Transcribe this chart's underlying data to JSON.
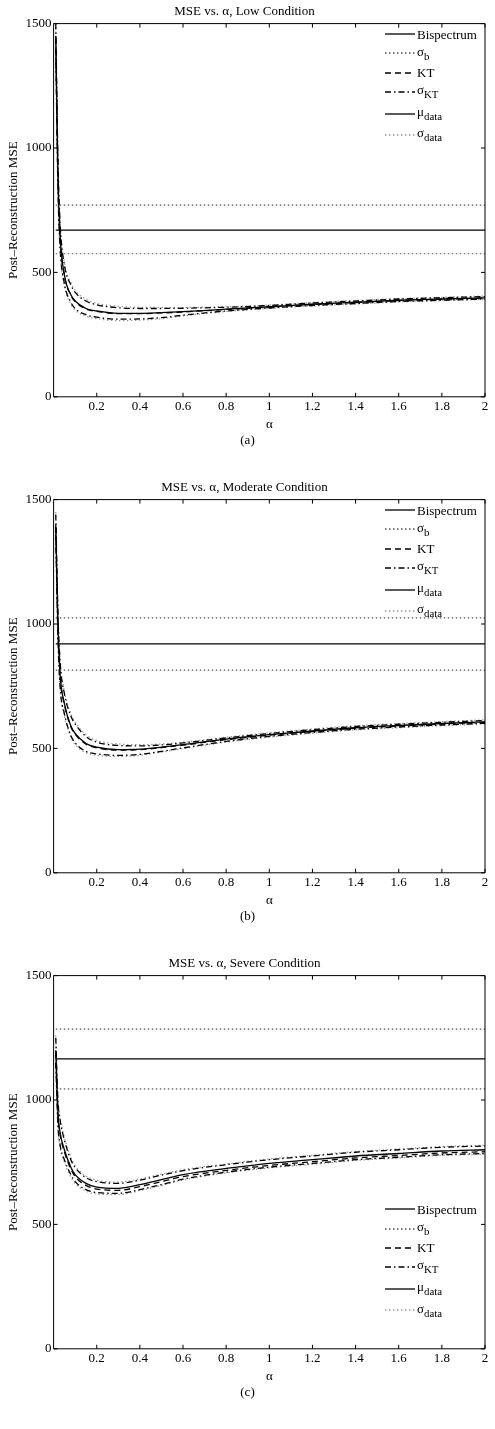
{
  "chart_data": [
    {
      "type": "line",
      "title": "MSE vs. α, Low Condition",
      "xlabel": "α",
      "ylabel": "Post–Reconstruction MSE",
      "annotations": [
        "(a)"
      ],
      "xlim": [
        0,
        2
      ],
      "xticks": [
        0.2,
        0.4,
        0.6,
        0.8,
        1,
        1.2,
        1.4,
        1.6,
        1.8,
        2
      ],
      "ylim": [
        0,
        1500
      ],
      "yticks": [
        0,
        500,
        1000,
        1500
      ],
      "grid": false,
      "legend": "top right",
      "marker": "none",
      "x": [
        0.01,
        0.02,
        0.03,
        0.05,
        0.08,
        0.1,
        0.15,
        0.2,
        0.3,
        0.4,
        0.5,
        0.6,
        0.8,
        1,
        1.2,
        1.4,
        1.6,
        1.8,
        2
      ],
      "series": [
        {
          "name": "Bispectrum",
          "color": "#000000",
          "line_style": "solid",
          "values": [
            670,
            670,
            670,
            670,
            670,
            670,
            670,
            670,
            670,
            670,
            670,
            670,
            670,
            670,
            670,
            670,
            670,
            670,
            670
          ]
        },
        {
          "name": "σ$_{b}$",
          "color": "#555555",
          "line_style": "dotted",
          "values": [
            770,
            770,
            770,
            770,
            770,
            770,
            770,
            770,
            770,
            770,
            770,
            770,
            770,
            770,
            770,
            770,
            770,
            770,
            770
          ]
        },
        {
          "color": "#555555",
          "line_style": "dotted",
          "values": [
            575,
            575,
            575,
            575,
            575,
            575,
            575,
            575,
            575,
            575,
            575,
            575,
            575,
            575,
            575,
            575,
            575,
            575,
            575
          ]
        },
        {
          "name": "KT",
          "color": "#000000",
          "line_style": "dashed",
          "values": [
            1440,
            890,
            645,
            488,
            408,
            383,
            353,
            343,
            334,
            334,
            337,
            341,
            351,
            361,
            371,
            379,
            387,
            392,
            397
          ]
        },
        {
          "name": "σ$_{KT}$",
          "color": "#000000",
          "line_style": "dashdot",
          "values": [
            1500,
            960,
            700,
            530,
            450,
            420,
            385,
            370,
            358,
            355,
            355,
            356,
            360,
            367,
            377,
            385,
            393,
            398,
            403
          ]
        },
        {
          "color": "#000000",
          "line_style": "dashdot",
          "values": [
            1400,
            840,
            600,
            455,
            380,
            355,
            330,
            320,
            312,
            313,
            318,
            328,
            345,
            357,
            367,
            375,
            383,
            388,
            393
          ]
        },
        {
          "name": "μ$_{data}$",
          "color": "#000000",
          "line_style": "solid",
          "values": [
            1450,
            900,
            650,
            490,
            410,
            385,
            355,
            345,
            335,
            335,
            338,
            342,
            352,
            362,
            372,
            380,
            388,
            393,
            398
          ]
        },
        {
          "name": "σ$_{data}$",
          "color": "#999999",
          "line_style": "dotted",
          "values": [
            1500,
            970,
            710,
            540,
            460,
            428,
            392,
            376,
            364,
            360,
            359,
            359,
            362,
            369,
            379,
            387,
            395,
            400,
            405
          ]
        },
        {
          "color": "#999999",
          "line_style": "dotted",
          "values": [
            1390,
            830,
            590,
            445,
            372,
            348,
            324,
            314,
            306,
            308,
            314,
            325,
            343,
            355,
            365,
            373,
            381,
            386,
            391
          ]
        }
      ]
    },
    {
      "type": "line",
      "title": "MSE vs. α, Moderate Condition",
      "xlabel": "α",
      "ylabel": "Post–Reconstruction MSE",
      "annotations": [
        "(b)"
      ],
      "xlim": [
        0,
        2
      ],
      "xticks": [
        0.2,
        0.4,
        0.6,
        0.8,
        1,
        1.2,
        1.4,
        1.6,
        1.8,
        2
      ],
      "ylim": [
        0,
        1500
      ],
      "yticks": [
        0,
        500,
        1000,
        1500
      ],
      "grid": false,
      "legend": "top right",
      "marker": "none",
      "x": [
        0.01,
        0.02,
        0.03,
        0.05,
        0.08,
        0.1,
        0.15,
        0.2,
        0.3,
        0.4,
        0.5,
        0.6,
        0.8,
        1,
        1.2,
        1.4,
        1.6,
        1.8,
        2
      ],
      "series": [
        {
          "name": "Bispectrum",
          "color": "#000000",
          "line_style": "solid",
          "values": [
            920,
            920,
            920,
            920,
            920,
            920,
            920,
            920,
            920,
            920,
            920,
            920,
            920,
            920,
            920,
            920,
            920,
            920,
            920
          ]
        },
        {
          "name": "σ$_{b}$",
          "color": "#555555",
          "line_style": "dotted",
          "values": [
            1025,
            1025,
            1025,
            1025,
            1025,
            1025,
            1025,
            1025,
            1025,
            1025,
            1025,
            1025,
            1025,
            1025,
            1025,
            1025,
            1025,
            1025,
            1025
          ]
        },
        {
          "color": "#555555",
          "line_style": "dotted",
          "values": [
            815,
            815,
            815,
            815,
            815,
            815,
            815,
            815,
            815,
            815,
            815,
            815,
            815,
            815,
            815,
            815,
            815,
            815,
            815
          ]
        },
        {
          "name": "KT",
          "color": "#000000",
          "line_style": "dashed",
          "values": [
            1390,
            995,
            795,
            677,
            587,
            557,
            517,
            502,
            493,
            495,
            503,
            513,
            535,
            553,
            568,
            581,
            590,
            598,
            605
          ]
        },
        {
          "name": "σ$_{KT}$",
          "color": "#000000",
          "line_style": "dashdot",
          "values": [
            1440,
            1050,
            850,
            720,
            630,
            598,
            548,
            525,
            512,
            510,
            514,
            522,
            542,
            560,
            575,
            588,
            597,
            605,
            612
          ]
        },
        {
          "color": "#000000",
          "line_style": "dashdot",
          "values": [
            1360,
            950,
            750,
            640,
            552,
            522,
            488,
            478,
            472,
            476,
            488,
            502,
            528,
            548,
            564,
            577,
            586,
            594,
            601
          ]
        },
        {
          "name": "μ$_{data}$",
          "color": "#000000",
          "line_style": "solid",
          "values": [
            1400,
            1000,
            800,
            680,
            590,
            560,
            520,
            505,
            495,
            497,
            505,
            515,
            537,
            555,
            570,
            583,
            592,
            600,
            607
          ]
        },
        {
          "name": "σ$_{data}$",
          "color": "#999999",
          "line_style": "dotted",
          "values": [
            1450,
            1060,
            860,
            730,
            640,
            606,
            555,
            532,
            518,
            515,
            518,
            525,
            545,
            563,
            578,
            591,
            600,
            608,
            615
          ]
        },
        {
          "color": "#999999",
          "line_style": "dotted",
          "values": [
            1350,
            940,
            740,
            630,
            545,
            515,
            482,
            472,
            467,
            472,
            485,
            499,
            525,
            545,
            561,
            574,
            583,
            591,
            598
          ]
        }
      ]
    },
    {
      "type": "line",
      "title": "MSE vs. α, Severe Condition",
      "xlabel": "α",
      "ylabel": "Post–Reconstruction MSE",
      "annotations": [
        "(c)"
      ],
      "xlim": [
        0,
        2
      ],
      "xticks": [
        0.2,
        0.4,
        0.6,
        0.8,
        1,
        1.2,
        1.4,
        1.6,
        1.8,
        2
      ],
      "ylim": [
        0,
        1500
      ],
      "yticks": [
        0,
        500,
        1000,
        1500
      ],
      "grid": false,
      "legend": "bottom right",
      "marker": "none",
      "x": [
        0.01,
        0.02,
        0.03,
        0.05,
        0.08,
        0.1,
        0.15,
        0.2,
        0.3,
        0.4,
        0.5,
        0.6,
        0.8,
        1,
        1.2,
        1.4,
        1.6,
        1.8,
        2
      ],
      "series": [
        {
          "name": "Bispectrum",
          "color": "#000000",
          "line_style": "solid",
          "values": [
            1165,
            1165,
            1165,
            1165,
            1165,
            1165,
            1165,
            1165,
            1165,
            1165,
            1165,
            1165,
            1165,
            1165,
            1165,
            1165,
            1165,
            1165,
            1165
          ]
        },
        {
          "name": "σ$_{b}$",
          "color": "#555555",
          "line_style": "dotted",
          "values": [
            1285,
            1285,
            1285,
            1285,
            1285,
            1285,
            1285,
            1285,
            1285,
            1285,
            1285,
            1285,
            1285,
            1285,
            1285,
            1285,
            1285,
            1285,
            1285
          ]
        },
        {
          "color": "#555555",
          "line_style": "dotted",
          "values": [
            1045,
            1045,
            1045,
            1045,
            1045,
            1045,
            1045,
            1045,
            1045,
            1045,
            1045,
            1045,
            1045,
            1045,
            1045,
            1045,
            1045,
            1045,
            1045
          ]
        },
        {
          "name": "KT",
          "color": "#000000",
          "line_style": "dashed",
          "values": [
            1190,
            942,
            862,
            792,
            722,
            692,
            657,
            642,
            637,
            652,
            672,
            692,
            717,
            737,
            752,
            767,
            777,
            787,
            792
          ]
        },
        {
          "name": "σ$_{KT}$",
          "color": "#000000",
          "line_style": "dashdot",
          "values": [
            1250,
            1000,
            920,
            840,
            760,
            728,
            688,
            672,
            665,
            678,
            698,
            716,
            740,
            760,
            775,
            790,
            800,
            810,
            815
          ]
        },
        {
          "color": "#000000",
          "line_style": "dashdot",
          "values": [
            1150,
            900,
            820,
            760,
            700,
            672,
            640,
            628,
            625,
            640,
            660,
            682,
            710,
            730,
            745,
            760,
            770,
            780,
            785
          ]
        },
        {
          "name": "μ$_{data}$",
          "color": "#000000",
          "line_style": "solid",
          "values": [
            1200,
            950,
            870,
            800,
            730,
            700,
            665,
            650,
            645,
            660,
            680,
            700,
            725,
            745,
            760,
            775,
            785,
            795,
            800
          ]
        },
        {
          "name": "σ$_{data}$",
          "color": "#999999",
          "line_style": "dotted",
          "values": [
            1260,
            1010,
            930,
            850,
            770,
            736,
            695,
            678,
            670,
            683,
            702,
            720,
            743,
            763,
            778,
            793,
            803,
            813,
            818
          ]
        },
        {
          "color": "#999999",
          "line_style": "dotted",
          "values": [
            1140,
            890,
            810,
            750,
            690,
            664,
            634,
            622,
            620,
            636,
            656,
            678,
            707,
            727,
            742,
            757,
            767,
            777,
            782
          ]
        }
      ]
    }
  ]
}
